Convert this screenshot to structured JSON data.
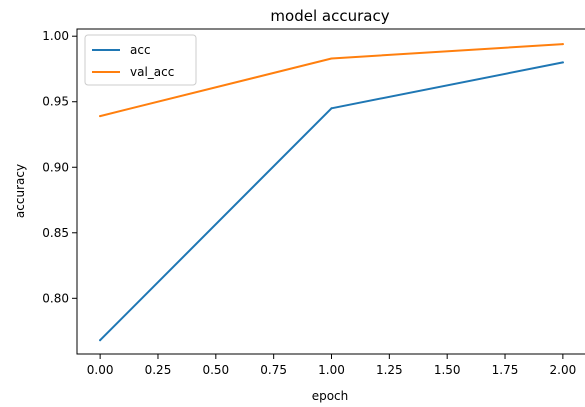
{
  "chart_data": {
    "type": "line",
    "title": "model accuracy",
    "xlabel": "epoch",
    "ylabel": "accuracy",
    "x": [
      0,
      1,
      2
    ],
    "xlim": [
      -0.1,
      2.1
    ],
    "ylim": [
      0.7575,
      1.0055
    ],
    "xticks": [
      0.0,
      0.25,
      0.5,
      0.75,
      1.0,
      1.25,
      1.5,
      1.75,
      2.0
    ],
    "xtick_labels": [
      "0.00",
      "0.25",
      "0.50",
      "0.75",
      "1.00",
      "1.25",
      "1.50",
      "1.75",
      "2.00"
    ],
    "yticks": [
      0.8,
      0.85,
      0.9,
      0.95,
      1.0
    ],
    "ytick_labels": [
      "0.80",
      "0.85",
      "0.90",
      "0.95",
      "1.00"
    ],
    "grid": false,
    "legend_position": "upper-left",
    "series": [
      {
        "name": "acc",
        "color": "#1f77b4",
        "values": [
          0.768,
          0.945,
          0.98
        ]
      },
      {
        "name": "val_acc",
        "color": "#ff7f0e",
        "values": [
          0.939,
          0.983,
          0.994
        ]
      }
    ]
  }
}
